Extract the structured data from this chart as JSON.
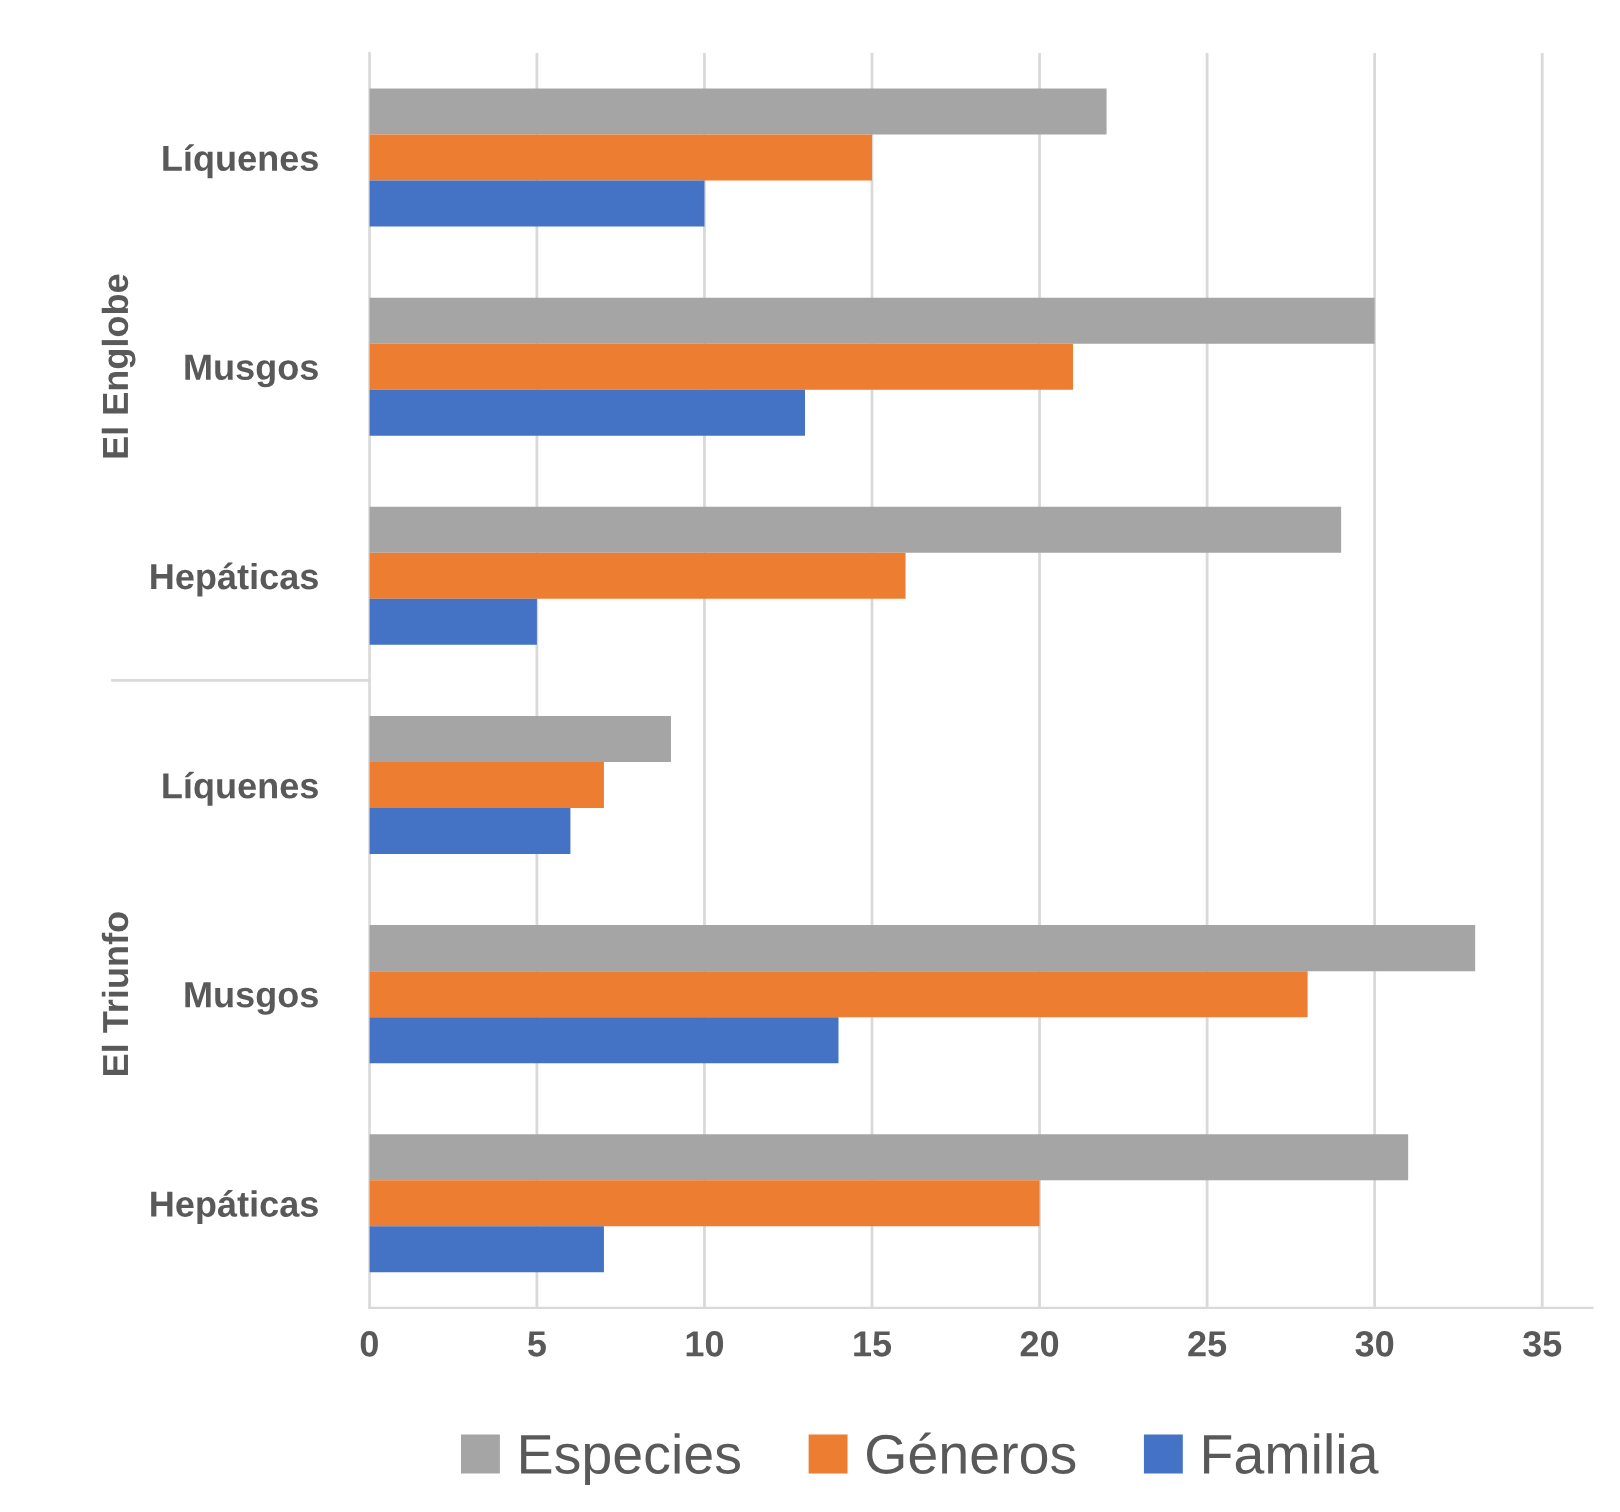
{
  "chart_data": {
    "type": "bar",
    "orientation": "horizontal",
    "categories": [
      "Líquenes",
      "Musgos",
      "Hepáticas",
      "Líquenes",
      "Musgos",
      "Hepáticas"
    ],
    "series": [
      {
        "name": "Especies",
        "color": "#a5a5a5",
        "values": [
          22,
          30,
          29,
          9,
          33,
          31
        ]
      },
      {
        "name": "Géneros",
        "color": "#ed7d31",
        "values": [
          15,
          21,
          16,
          7,
          28,
          20
        ]
      },
      {
        "name": "Familia",
        "color": "#4472c4",
        "values": [
          10,
          13,
          5,
          6,
          14,
          7
        ]
      }
    ],
    "annotations": [
      "El Englobe",
      "El Triunfo"
    ],
    "xlim": [
      0,
      36.5
    ],
    "xticks": [
      0,
      5,
      10,
      15,
      20,
      25,
      30,
      35
    ],
    "grid": "x",
    "legend": "bottom"
  }
}
